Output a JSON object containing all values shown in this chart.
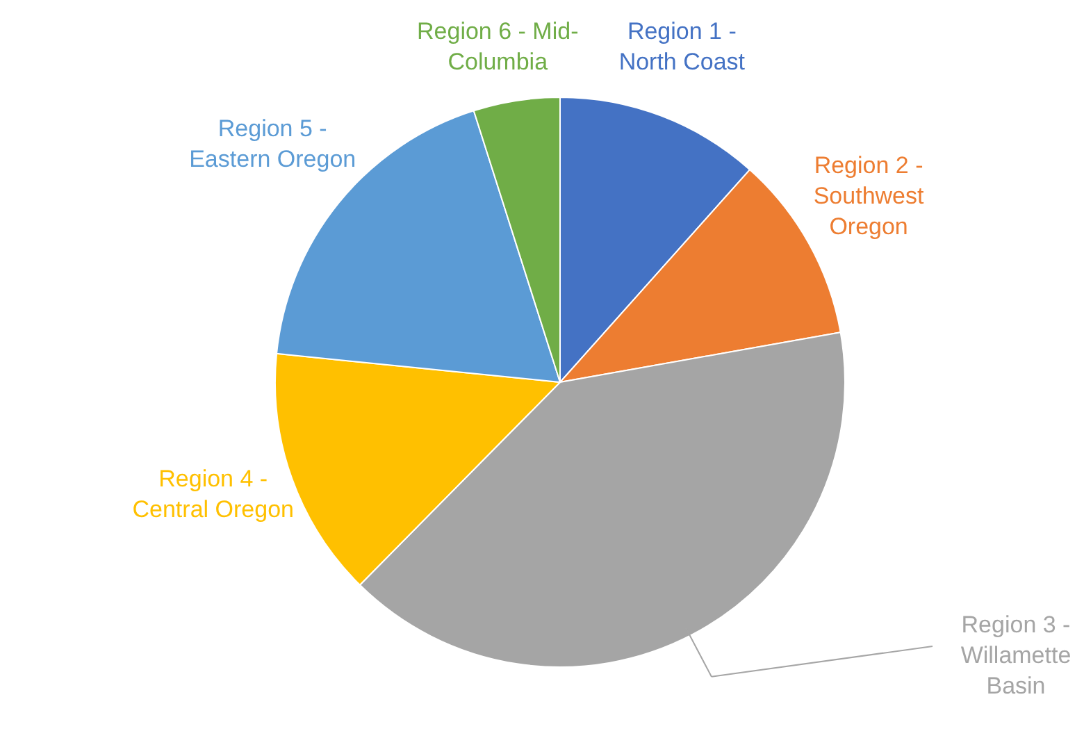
{
  "chart_data": {
    "type": "pie",
    "categories": [
      "Region 1 - North Coast",
      "Region 2 - Southwest Oregon",
      "Region 3 - Willamette Basin",
      "Region 4 - Central Oregon",
      "Region 5 - Eastern Oregon",
      "Region 6 - Mid-Columbia"
    ],
    "values": [
      11.6,
      10.6,
      40.2,
      14.2,
      18.5,
      4.9
    ],
    "colors": [
      "#4472c4",
      "#ed7d31",
      "#a5a5a5",
      "#ffc000",
      "#5b9bd5",
      "#70ad47"
    ],
    "legend": false
  }
}
